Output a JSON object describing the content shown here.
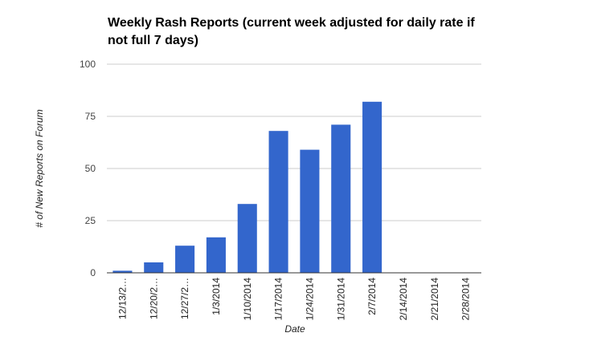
{
  "chart_data": {
    "type": "bar",
    "title": "Weekly Rash Reports (current week adjusted for daily rate if not full 7 days)",
    "xlabel": "Date",
    "ylabel": "# of New Reports on Forum",
    "categories": [
      "12/13/2…",
      "12/20/2…",
      "12/27/2…",
      "1/3/2014",
      "1/10/2014",
      "1/17/2014",
      "1/24/2014",
      "1/31/2014",
      "2/7/2014",
      "2/14/2014",
      "2/21/2014",
      "2/28/2014"
    ],
    "values": [
      1,
      5,
      13,
      17,
      33,
      68,
      59,
      71,
      82,
      0,
      0,
      0
    ],
    "ylim": [
      0,
      100
    ],
    "yticks": [
      "0",
      "25",
      "50",
      "75",
      "100"
    ],
    "grid": true,
    "legend": "none",
    "bar_color": "#3366cc"
  }
}
